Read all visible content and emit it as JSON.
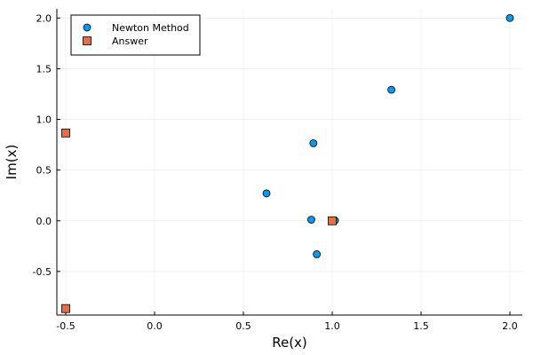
{
  "chart_data": {
    "type": "scatter",
    "xlabel": "Re(x)",
    "ylabel": "Im(x)",
    "xlim": [
      -0.55,
      2.07
    ],
    "ylim": [
      -0.93,
      2.09
    ],
    "xticks": [
      -0.5,
      0.0,
      0.5,
      1.0,
      1.5,
      2.0
    ],
    "yticks": [
      -0.5,
      0.0,
      0.5,
      1.0,
      1.5,
      2.0
    ],
    "xtick_labels": [
      "-0.5",
      "0.0",
      "0.5",
      "1.0",
      "1.5",
      "2.0"
    ],
    "ytick_labels": [
      "-0.5",
      "0.0",
      "0.5",
      "1.0",
      "1.5",
      "2.0"
    ],
    "grid": true,
    "legend_position": "top-left",
    "series": [
      {
        "name": "Newton Method",
        "marker": "circle",
        "color": "#009AFA",
        "points": [
          {
            "x": 2.0,
            "y": 2.0
          },
          {
            "x": 1.333,
            "y": 1.292
          },
          {
            "x": 0.894,
            "y": 0.765
          },
          {
            "x": 0.63,
            "y": 0.27
          },
          {
            "x": 0.882,
            "y": 0.011
          },
          {
            "x": 0.913,
            "y": -0.33
          },
          {
            "x": 1.015,
            "y": 0.002
          },
          {
            "x": 1.0,
            "y": 0.0
          }
        ]
      },
      {
        "name": "Answer",
        "marker": "square",
        "color": "#E26F46",
        "points": [
          {
            "x": 1.0,
            "y": 0.0
          },
          {
            "x": -0.5,
            "y": 0.866
          },
          {
            "x": -0.5,
            "y": -0.866
          }
        ]
      }
    ]
  }
}
